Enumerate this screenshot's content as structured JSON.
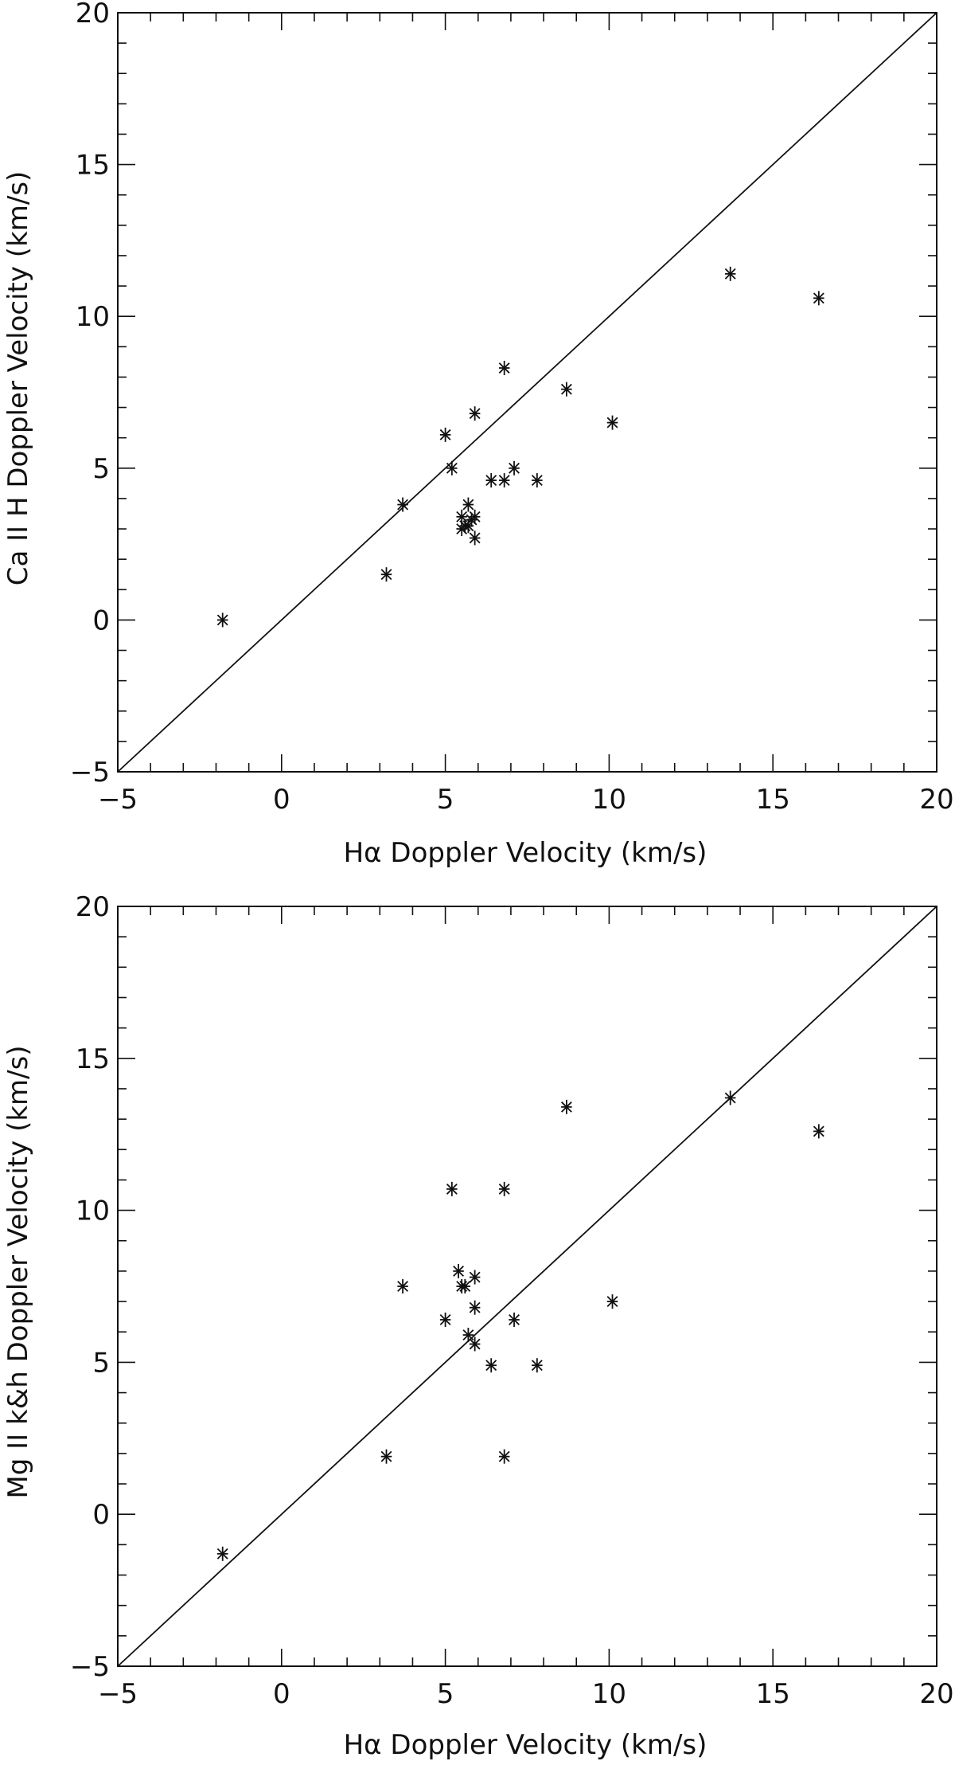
{
  "chart_data": [
    {
      "type": "scatter",
      "title": "",
      "xlabel": "Hα Doppler Velocity (km/s)",
      "ylabel": "Ca II H Doppler Velocity (km/s)",
      "xlim": [
        -5,
        20
      ],
      "ylim": [
        -5,
        20
      ],
      "xticks": [
        "−5",
        "0",
        "5",
        "10",
        "15",
        "20"
      ],
      "yticks": [
        "−5",
        "0",
        "5",
        "10",
        "15",
        "20"
      ],
      "marker": "asterisk",
      "reference_line": "y = x",
      "grid": false,
      "series": [
        {
          "x": [
            -1.8,
            3.2,
            3.7,
            5.0,
            5.2,
            5.5,
            5.5,
            5.6,
            5.7,
            5.7,
            5.8,
            5.9,
            5.9,
            5.9,
            6.4,
            6.8,
            6.8,
            7.1,
            7.8,
            8.7,
            10.1,
            13.7,
            16.4
          ],
          "y": [
            0.0,
            1.5,
            3.8,
            6.1,
            5.0,
            3.0,
            3.4,
            3.1,
            3.8,
            3.1,
            3.3,
            2.7,
            3.4,
            6.8,
            4.6,
            4.6,
            8.3,
            5.0,
            4.6,
            7.6,
            6.5,
            11.4,
            10.6
          ]
        }
      ]
    },
    {
      "type": "scatter",
      "title": "",
      "xlabel": "Hα Doppler Velocity (km/s)",
      "ylabel": "Mg II k&h Doppler Velocity (km/s)",
      "xlim": [
        -5,
        20
      ],
      "ylim": [
        -5,
        20
      ],
      "xticks": [
        "−5",
        "0",
        "5",
        "10",
        "15",
        "20"
      ],
      "yticks": [
        "−5",
        "0",
        "5",
        "10",
        "15",
        "20"
      ],
      "marker": "asterisk",
      "reference_line": "y = x",
      "grid": false,
      "series": [
        {
          "x": [
            -1.8,
            3.2,
            3.7,
            5.0,
            5.2,
            5.4,
            5.5,
            5.6,
            5.7,
            5.9,
            5.9,
            5.9,
            6.4,
            6.8,
            6.8,
            7.1,
            7.8,
            8.7,
            10.1,
            13.7,
            16.4
          ],
          "y": [
            -1.3,
            1.9,
            7.5,
            6.4,
            10.7,
            8.0,
            7.5,
            7.5,
            5.9,
            7.8,
            6.8,
            5.6,
            4.9,
            10.7,
            1.9,
            6.4,
            4.9,
            13.4,
            7.0,
            13.7,
            12.6
          ]
        }
      ]
    }
  ]
}
